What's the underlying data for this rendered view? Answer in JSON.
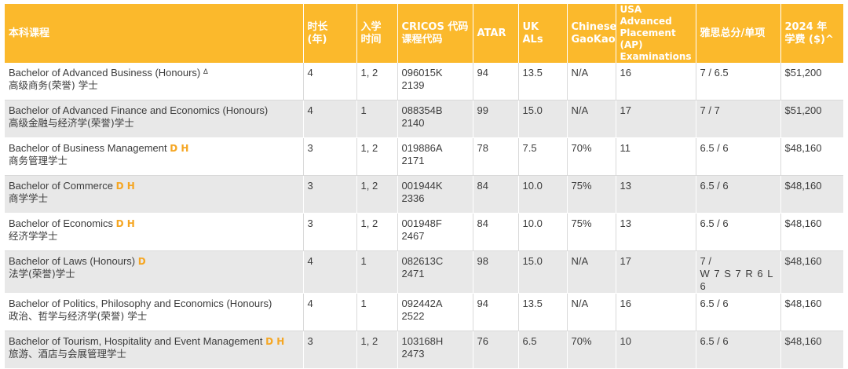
{
  "headers": {
    "course": "本科课程",
    "duration": [
      "时长",
      "(年)"
    ],
    "intake": [
      "入学",
      "时间"
    ],
    "cricos": [
      "CRICOS 代码",
      "课程代码"
    ],
    "atar": "ATAR",
    "ukals": "UK ALs",
    "gaokao": [
      "Chinese",
      "GaoKao"
    ],
    "usa": [
      "USA Advanced",
      "Placement (AP)",
      "Examinations"
    ],
    "ielts": "雅思总分/单项",
    "fee": [
      "2024 年",
      "学费 ($)^"
    ]
  },
  "rows": [
    {
      "en": "Bachelor of Advanced Business (Honours)",
      "mark": "Δ",
      "badge": "",
      "cn": "高级商务(荣誉) 学士",
      "duration": "4",
      "intake": "1, 2",
      "cricos": "096015K",
      "code": "2139",
      "atar": "94",
      "ukals": "13.5",
      "gaokao": "N/A",
      "usa": "16",
      "ielts": [
        "7 / 6.5"
      ],
      "fee": "$51,200"
    },
    {
      "en": "Bachelor of Advanced Finance and Economics (Honours)",
      "mark": "",
      "badge": "",
      "cn": "高级金融与经济学(荣誉)学士",
      "duration": "4",
      "intake": "1",
      "cricos": "088354B",
      "code": "2140",
      "atar": "99",
      "ukals": "15.0",
      "gaokao": "N/A",
      "usa": "17",
      "ielts": [
        "7 / 7"
      ],
      "fee": "$51,200"
    },
    {
      "en": "Bachelor of Business Management",
      "mark": "",
      "badge": "D H",
      "cn": "商务管理学士",
      "duration": "3",
      "intake": "1, 2",
      "cricos": "019886A",
      "code": "2171",
      "atar": "78",
      "ukals": "7.5",
      "gaokao": "70%",
      "usa": "11",
      "ielts": [
        "6.5 / 6"
      ],
      "fee": "$48,160"
    },
    {
      "en": "Bachelor of Commerce",
      "mark": "",
      "badge": "D H",
      "cn": "商学学士",
      "duration": "3",
      "intake": "1, 2",
      "cricos": "001944K",
      "code": "2336",
      "atar": "84",
      "ukals": "10.0",
      "gaokao": "75%",
      "usa": "13",
      "ielts": [
        "6.5 / 6"
      ],
      "fee": "$48,160"
    },
    {
      "en": "Bachelor of Economics",
      "mark": "",
      "badge": "D H",
      "cn": "经济学学士",
      "duration": "3",
      "intake": "1, 2",
      "cricos": "001948F",
      "code": "2467",
      "atar": "84",
      "ukals": "10.0",
      "gaokao": "75%",
      "usa": "13",
      "ielts": [
        "6.5 / 6"
      ],
      "fee": "$48,160"
    },
    {
      "en": "Bachelor of Laws (Honours)",
      "mark": "",
      "badge": "D",
      "cn": "法学(荣誉)学士",
      "duration": "4",
      "intake": "1",
      "cricos": "082613C",
      "code": "2471",
      "atar": "98",
      "ukals": "15.0",
      "gaokao": "N/A",
      "usa": "17",
      "ielts": [
        "7 /",
        "W 7 S 7 R 6 L 6"
      ],
      "fee": "$48,160"
    },
    {
      "en": "Bachelor of Politics, Philosophy and Economics (Honours)",
      "mark": "",
      "badge": "",
      "cn": "政治、哲学与经济学(荣誉) 学士",
      "duration": "4",
      "intake": "1",
      "cricos": "092442A",
      "code": "2522",
      "atar": "94",
      "ukals": "13.5",
      "gaokao": "N/A",
      "usa": "16",
      "ielts": [
        "6.5 / 6"
      ],
      "fee": "$48,160"
    },
    {
      "en": "Bachelor of Tourism, Hospitality and Event Management",
      "mark": "",
      "badge": "D H",
      "cn": "旅游、酒店与会展管理学士",
      "duration": "3",
      "intake": "1, 2",
      "cricos": "103168H",
      "code": "2473",
      "atar": "76",
      "ukals": "6.5",
      "gaokao": "70%",
      "usa": "10",
      "ielts": [
        "6.5 / 6"
      ],
      "fee": "$48,160"
    }
  ],
  "colors": {
    "header_bg": "#fbb92c",
    "badge": "#f5a623",
    "stripe": "#e8e8e8"
  }
}
